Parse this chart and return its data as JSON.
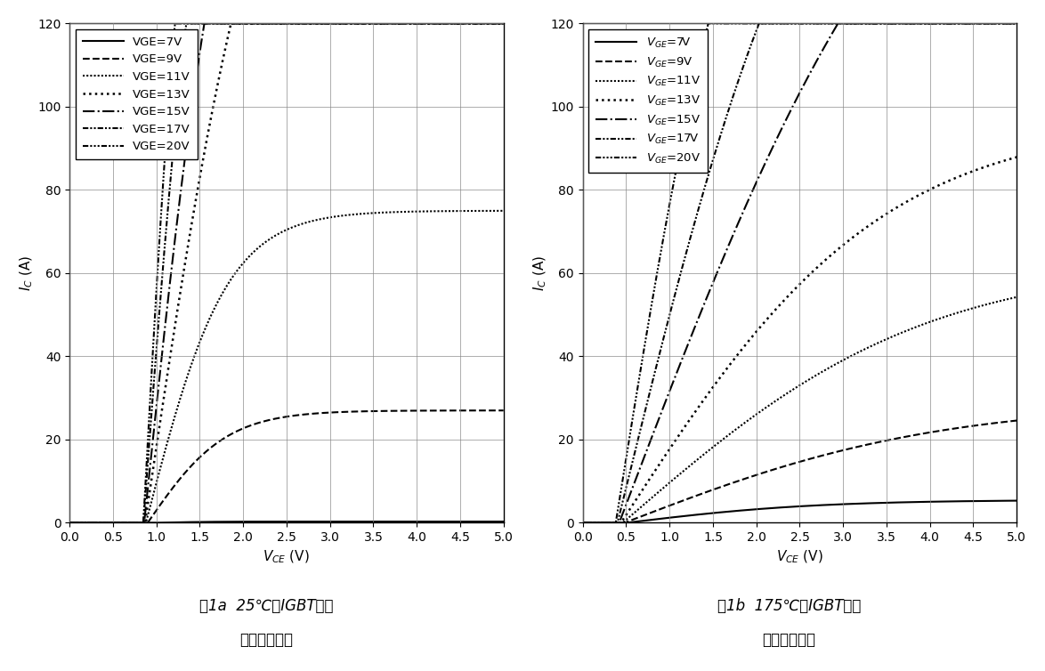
{
  "legend_labels_a": [
    "VGE=7V",
    "VGE=9V",
    "VGE=11V",
    "VGE=13V",
    "VGE=15V",
    "VGE=17V",
    "VGE=20V"
  ],
  "legend_labels_b": [
    "$V_{GE}$=7V",
    "$V_{GE}$=9V",
    "$V_{GE}$=11V",
    "$V_{GE}$=13V",
    "$V_{GE}$=15V",
    "$V_{GE}$=17V",
    "$V_{GE}$=20V"
  ],
  "xlim": [
    0.0,
    5.0
  ],
  "ylim": [
    0,
    120
  ],
  "xticks": [
    0.0,
    0.5,
    1.0,
    1.5,
    2.0,
    2.5,
    3.0,
    3.5,
    4.0,
    4.5,
    5.0
  ],
  "yticks": [
    0,
    20,
    40,
    60,
    80,
    100,
    120
  ],
  "caption_a_line1": "图1a  25℃下IGBT典型",
  "caption_a_line2": "输出特性曲线",
  "caption_b_line1": "图1b  175℃下IGBT典型",
  "caption_b_line2": "输出特性曲线",
  "curves_25C": {
    "7": {
      "isat": 0.3,
      "vth": 1.0,
      "slope": 0.5,
      "knee_sharpness": 3.0
    },
    "9": {
      "isat": 27.0,
      "vth": 0.9,
      "slope": 30.0,
      "knee_sharpness": 4.0
    },
    "11": {
      "isat": 75.0,
      "vth": 0.88,
      "slope": 80.0,
      "knee_sharpness": 5.0
    },
    "13": {
      "isat": 200.0,
      "vth": 0.87,
      "slope": 140.0,
      "knee_sharpness": 6.0
    },
    "15": {
      "isat": 200.0,
      "vth": 0.86,
      "slope": 200.0,
      "knee_sharpness": 7.0
    },
    "17": {
      "isat": 200.0,
      "vth": 0.85,
      "slope": 280.0,
      "knee_sharpness": 8.0
    },
    "20": {
      "isat": 200.0,
      "vth": 0.85,
      "slope": 380.0,
      "knee_sharpness": 9.0
    }
  },
  "curves_175C": {
    "7": {
      "isat": 5.5,
      "vth": 0.5,
      "slope": 2.5,
      "knee_sharpness": 1.5
    },
    "9": {
      "isat": 29.0,
      "vth": 0.48,
      "slope": 8.0,
      "knee_sharpness": 1.8
    },
    "11": {
      "isat": 63.0,
      "vth": 0.46,
      "slope": 18.0,
      "knee_sharpness": 2.0
    },
    "13": {
      "isat": 97.0,
      "vth": 0.44,
      "slope": 32.0,
      "knee_sharpness": 2.5
    },
    "15": {
      "isat": 200.0,
      "vth": 0.42,
      "slope": 55.0,
      "knee_sharpness": 3.0
    },
    "17": {
      "isat": 200.0,
      "vth": 0.4,
      "slope": 85.0,
      "knee_sharpness": 3.5
    },
    "20": {
      "isat": 200.0,
      "vth": 0.38,
      "slope": 130.0,
      "knee_sharpness": 4.0
    }
  },
  "linestyles": {
    "7": [
      1.5,
      "solid"
    ],
    "9": [
      1.5,
      "dashed"
    ],
    "11": [
      1.5,
      "densely_dotted"
    ],
    "13": [
      1.8,
      "dotted"
    ],
    "15": [
      1.5,
      "dashdot"
    ],
    "17": [
      1.5,
      "densely_dashdotdot"
    ],
    "20": [
      1.5,
      "densely_dashdotdotdot"
    ]
  }
}
